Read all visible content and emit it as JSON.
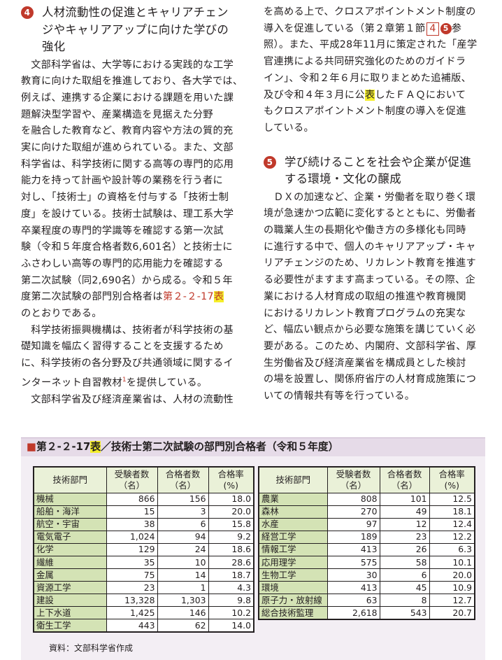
{
  "left": {
    "heading_num": "4",
    "heading_lines": [
      "人材流動性の促進とキャリアチェン",
      "ジやキャリアアップに向けた学びの",
      "強化"
    ],
    "p1": [
      "文部科学省は、大学等における実践的な工学",
      "教育に向けた取組を推進しており、各大学では、",
      "例えば、連携する企業における課題を用いた課",
      "題解決型学習や、産業構造を見据えた分野",
      "を融合した教育など、教育内容や方法の質的充",
      "実に向けた取組が進められている。また、文部",
      "科学省は、科学技術に関する高等の専門的応用",
      "能力を持って計画や設計等の業務を行う者に",
      "対し、「技術士」の資格を付与する「技術士制",
      "度」を設けている。技術士試験は、理工系大学",
      "卒業程度の専門的学識等を確認する第一次試",
      "験（令和５年度合格者数6,601名）と技術士に",
      "ふさわしい高等の専門的応用能力を確認する",
      "第二次試験（同2,690名）から成る。令和５年",
      "度第二次試験の部門別合格者は"
    ],
    "p1_ref": "第２-２-17",
    "p1_ref_hl": "表",
    "p1_end": "のとおりである。",
    "p2": [
      "科学技術振興機構は、技術者が科学技術の基",
      "礎知識を幅広く習得することを支援するため",
      "に、科学技術の各分野及び共通領域に関するイ",
      "ンターネット自習教材"
    ],
    "p2_sup": "1",
    "p2_end": "を提供している。",
    "p3": "文部科学省及び経済産業省は、人材の流動性"
  },
  "right": {
    "p1_l1": "を高める上で、クロスアポイントメント制度の",
    "p1_l2a": "導入を促進している（第２章第１節",
    "p1_box": "4",
    "p1_circle": "5",
    "p1_l2b": "参",
    "p1_l3": "照）。また、平成28年11月に策定された「産学",
    "p1_l4": "官連携による共同研究強化のためのガイドラ",
    "p1_l5": "イン」、令和２年６月に取りまとめた追補版、",
    "p1_l6a": "及び令和４年３月に公",
    "p1_l6hl": "表",
    "p1_l6b": "したＦＡＱにおいて",
    "p1_l7": "もクロスアポイントメント制度の導入を促進",
    "p1_l8": "している。",
    "heading_num": "5",
    "heading_lines": [
      "学び続けることを社会や企業が促進",
      "する環境・文化の醸成"
    ],
    "p2": [
      "ＤＸの加速など、企業・労働者を取り巻く環",
      "境が急速かつ広範に変化するとともに、労働者",
      "の職業人生の長期化や働き方の多様化も同時",
      "に進行する中で、個人のキャリアアップ・キャ",
      "リアチェンジのため、リカレント教育を推進す",
      "る必要性がますます高まっている。その際、企",
      "業における人材育成の取組の推進や教育機関",
      "におけるリカレント教育プログラムの充実な",
      "ど、幅広い観点から必要な施策を講じていく必",
      "要がある。このため、内閣府、文部科学省、厚",
      "生労働省及び経済産業省を構成員とした検討",
      "の場を設置し、関係府省庁の人材育成施策につ",
      "いての情報共有等を行っている。"
    ]
  },
  "table": {
    "title_prefix": "■",
    "title_num": "第２-２-17",
    "title_hl": "表",
    "title_rest": "／技術士第二次試験の部門別合格者（令和５年度）",
    "headers": [
      "技術部門",
      "受験者数（名）",
      "合格者数（名）",
      "合格率(%)"
    ],
    "headers_l1": [
      "技術部門",
      "受験者数",
      "合格者数",
      "合格率(%)"
    ],
    "headers_l2": [
      "",
      "（名）",
      "（名）",
      ""
    ],
    "left_rows": [
      [
        "機械",
        "866",
        "156",
        "18.0"
      ],
      [
        "船舶・海洋",
        "15",
        "3",
        "20.0"
      ],
      [
        "航空・宇宙",
        "38",
        "6",
        "15.8"
      ],
      [
        "電気電子",
        "1,024",
        "94",
        "9.2"
      ],
      [
        "化学",
        "129",
        "24",
        "18.6"
      ],
      [
        "繊維",
        "35",
        "10",
        "28.6"
      ],
      [
        "金属",
        "75",
        "14",
        "18.7"
      ],
      [
        "資源工学",
        "23",
        "1",
        "4.3"
      ],
      [
        "建設",
        "13,328",
        "1,303",
        "9.8"
      ],
      [
        "上下水道",
        "1,425",
        "146",
        "10.2"
      ],
      [
        "衛生工学",
        "443",
        "62",
        "14.0"
      ]
    ],
    "right_rows": [
      [
        "農業",
        "808",
        "101",
        "12.5"
      ],
      [
        "森林",
        "270",
        "49",
        "18.1"
      ],
      [
        "水産",
        "97",
        "12",
        "12.4"
      ],
      [
        "経営工学",
        "189",
        "23",
        "12.2"
      ],
      [
        "情報工学",
        "413",
        "26",
        "6.3"
      ],
      [
        "応用理学",
        "575",
        "58",
        "10.1"
      ],
      [
        "生物工学",
        "30",
        "6",
        "20.0"
      ],
      [
        "環境",
        "413",
        "45",
        "10.9"
      ],
      [
        "原子力・放射線",
        "63",
        "8",
        "12.7"
      ],
      [
        "総合技術監理",
        "2,618",
        "543",
        "20.7"
      ]
    ],
    "source": "資料：文部科学省作成"
  }
}
